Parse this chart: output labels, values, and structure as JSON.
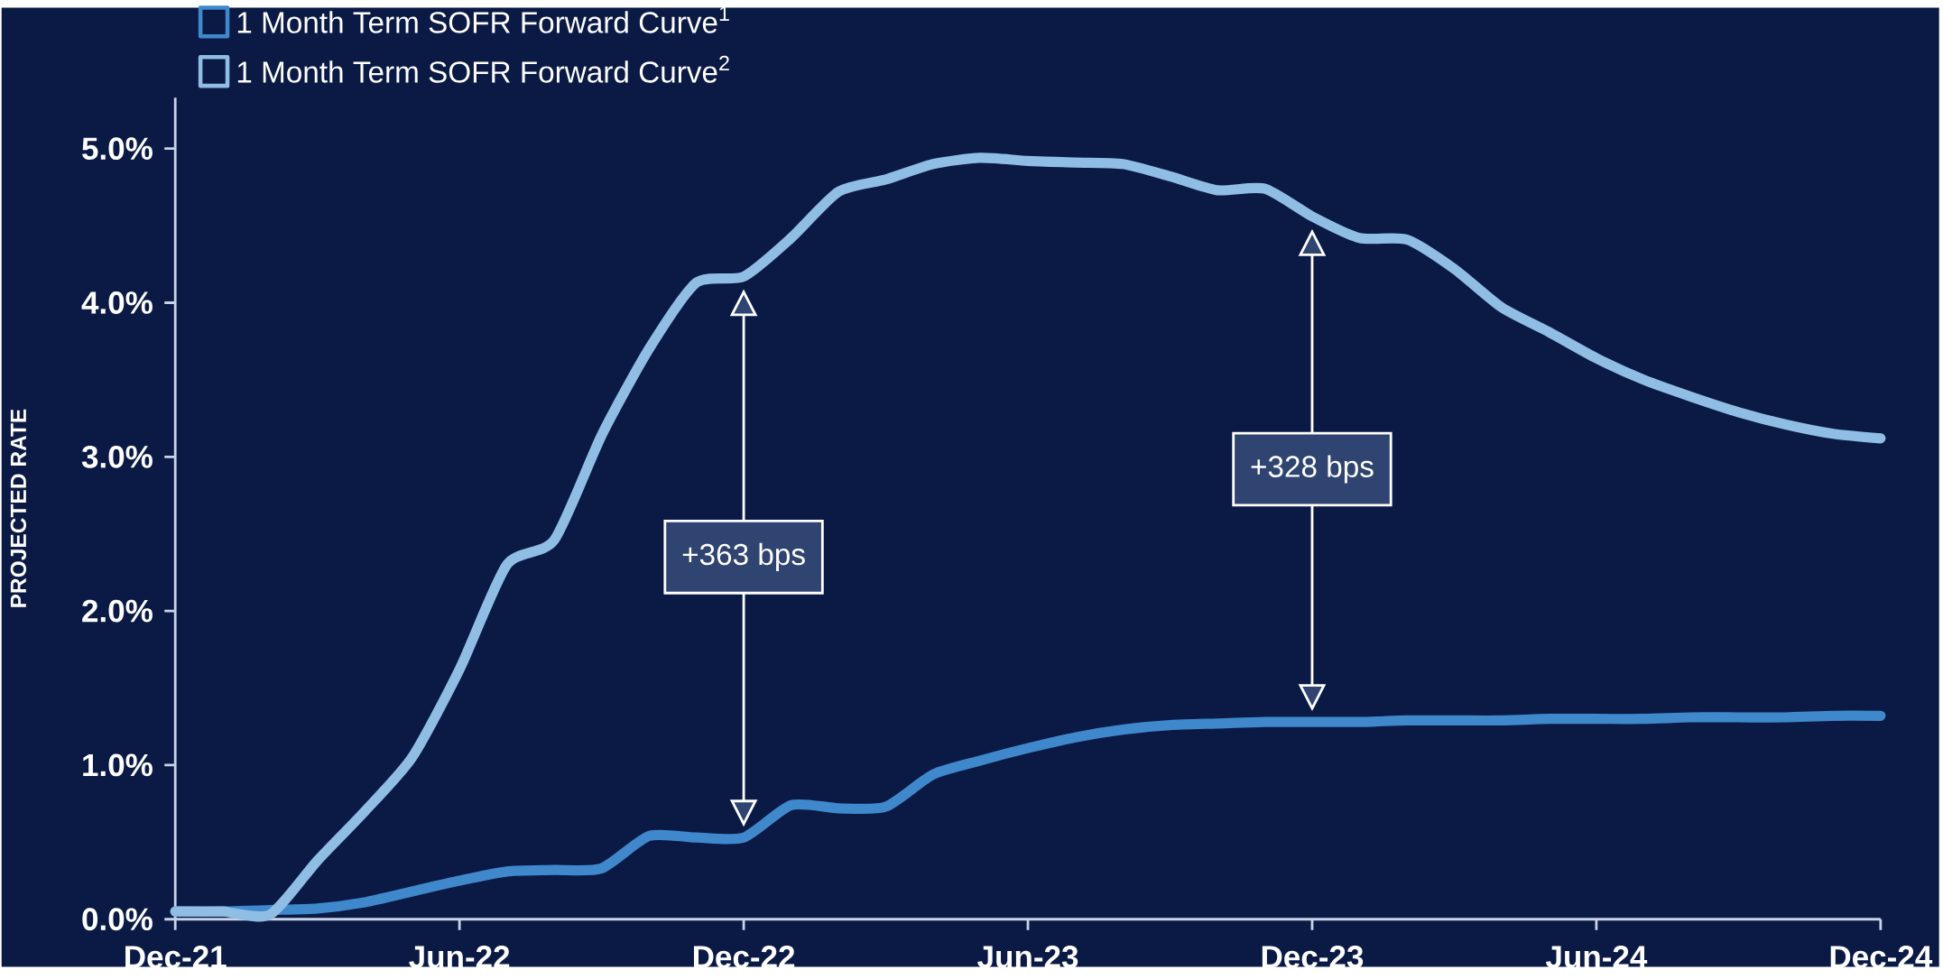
{
  "chart_data": {
    "type": "line",
    "ylabel": "PROJECTED RATE",
    "x": [
      "2021-12",
      "2022-01",
      "2022-02",
      "2022-03",
      "2022-04",
      "2022-05",
      "2022-06",
      "2022-07",
      "2022-08",
      "2022-09",
      "2022-10",
      "2022-11",
      "2022-12",
      "2023-01",
      "2023-02",
      "2023-03",
      "2023-04",
      "2023-05",
      "2023-06",
      "2023-07",
      "2023-08",
      "2023-09",
      "2023-10",
      "2023-11",
      "2023-12",
      "2024-01",
      "2024-02",
      "2024-03",
      "2024-04",
      "2024-05",
      "2024-06",
      "2024-07",
      "2024-08",
      "2024-09",
      "2024-10",
      "2024-11",
      "2024-12"
    ],
    "series": [
      {
        "name": "1 Month Term SOFR Forward Curve$^{1}$",
        "color": "#3f88cc",
        "values": [
          0.05,
          0.05,
          0.06,
          0.07,
          0.11,
          0.18,
          0.25,
          0.31,
          0.32,
          0.33,
          0.54,
          0.53,
          0.53,
          0.74,
          0.72,
          0.73,
          0.94,
          1.03,
          1.11,
          1.18,
          1.23,
          1.26,
          1.27,
          1.28,
          1.28,
          1.28,
          1.29,
          1.29,
          1.29,
          1.3,
          1.3,
          1.3,
          1.31,
          1.31,
          1.31,
          1.32,
          1.32
        ]
      },
      {
        "name": "1 Month Term SOFR Forward Curve$^{2}$",
        "color": "#8fbde4",
        "values": [
          0.05,
          0.05,
          0.03,
          0.38,
          0.7,
          1.05,
          1.62,
          2.3,
          2.46,
          3.14,
          3.7,
          4.13,
          4.17,
          4.42,
          4.72,
          4.8,
          4.9,
          4.94,
          4.92,
          4.91,
          4.9,
          4.82,
          4.73,
          4.74,
          4.56,
          4.42,
          4.41,
          4.22,
          3.97,
          3.81,
          3.64,
          3.5,
          3.39,
          3.29,
          3.21,
          3.15,
          3.12
        ]
      }
    ],
    "xlim": [
      "2021-12",
      "2024-12"
    ],
    "xticks": [
      {
        "value": "2021-12",
        "label": "Dec-21"
      },
      {
        "value": "2022-06",
        "label": "Jun-22"
      },
      {
        "value": "2022-12",
        "label": "Dec-22"
      },
      {
        "value": "2023-06",
        "label": "Jun-23"
      },
      {
        "value": "2023-12",
        "label": "Dec-23"
      },
      {
        "value": "2024-06",
        "label": "Jun-24"
      },
      {
        "value": "2024-12",
        "label": "Dec-24"
      }
    ],
    "ylim": [
      0,
      5.33
    ],
    "yticks": [
      {
        "value": 0,
        "label": "0.0%"
      },
      {
        "value": 1,
        "label": "1.0%"
      },
      {
        "value": 2,
        "label": "2.0%"
      },
      {
        "value": 3,
        "label": "3.0%"
      },
      {
        "value": 4,
        "label": "4.0%"
      },
      {
        "value": 5,
        "label": "5.0%"
      }
    ],
    "annotations": [
      "+363 bps",
      "+328 bps"
    ],
    "legend": "top left",
    "grid": false
  }
}
